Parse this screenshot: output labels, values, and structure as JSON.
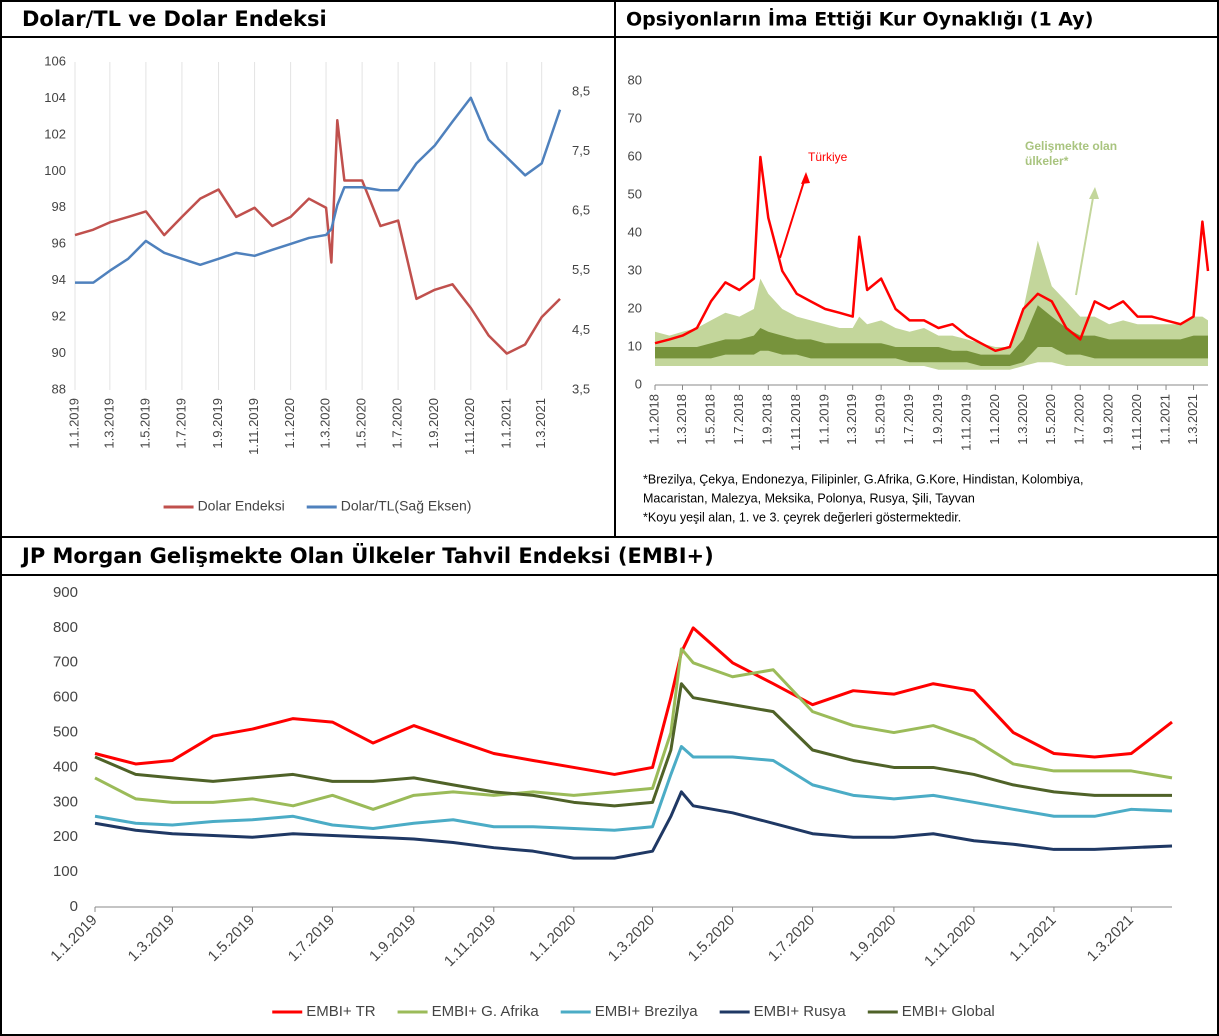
{
  "chart_data": [
    {
      "type": "line",
      "title": "Dolar/TL ve Dolar Endeksi",
      "x": [
        "1.1.2019",
        "1.2.2019",
        "1.3.2019",
        "1.4.2019",
        "1.5.2019",
        "1.6.2019",
        "1.7.2019",
        "1.8.2019",
        "1.9.2019",
        "1.10.2019",
        "1.11.2019",
        "1.12.2019",
        "1.1.2020",
        "1.2.2020",
        "1.3.2020",
        "10.3.2020",
        "20.3.2020",
        "1.4.2020",
        "1.5.2020",
        "1.6.2020",
        "1.7.2020",
        "1.8.2020",
        "1.9.2020",
        "1.10.2020",
        "1.11.2020",
        "1.12.2020",
        "1.1.2021",
        "1.2.2021",
        "1.3.2021",
        "1.4.2021"
      ],
      "xticks": [
        "1.1.2019",
        "1.3.2019",
        "1.5.2019",
        "1.7.2019",
        "1.9.2019",
        "1.11.2019",
        "1.1.2020",
        "1.3.2020",
        "1.5.2020",
        "1.7.2020",
        "1.9.2020",
        "1.11.2020",
        "1.1.2021",
        "1.3.2021"
      ],
      "ylim": [
        88,
        106
      ],
      "yticks": [
        88,
        90,
        92,
        94,
        96,
        98,
        100,
        102,
        104,
        106
      ],
      "y2lim": [
        3.5,
        9
      ],
      "y2ticks": [
        {
          "value": 3.5,
          "label": "3,5"
        },
        {
          "value": 4.5,
          "label": "4,5"
        },
        {
          "value": 5.5,
          "label": "5,5"
        },
        {
          "value": 6.5,
          "label": "6,5"
        },
        {
          "value": 7.5,
          "label": "7,5"
        },
        {
          "value": 8.5,
          "label": "8,5"
        }
      ],
      "grid": "x",
      "legend": "bottom",
      "series": [
        {
          "name": "Dolar Endeksi",
          "color": "#c0504d",
          "values": [
            96.5,
            96.8,
            97.2,
            97.5,
            97.8,
            96.5,
            97.5,
            98.5,
            99.0,
            97.5,
            98.0,
            97.0,
            97.5,
            98.5,
            98.0,
            95.0,
            102.8,
            99.5,
            99.5,
            97.0,
            97.3,
            93.0,
            93.5,
            93.8,
            92.5,
            91.0,
            90.0,
            90.5,
            92.0,
            93.0
          ]
        },
        {
          "name": "Dolar/TL(Sağ Eksen)",
          "color": "#4f81bd",
          "axis": "y2",
          "values": [
            5.3,
            5.3,
            5.5,
            5.7,
            6.0,
            5.8,
            5.7,
            5.6,
            5.7,
            5.8,
            5.75,
            5.85,
            5.95,
            6.05,
            6.1,
            6.2,
            6.6,
            6.9,
            6.9,
            6.85,
            6.85,
            7.3,
            7.6,
            8.0,
            8.4,
            7.7,
            7.4,
            7.1,
            7.3,
            8.2
          ]
        }
      ]
    },
    {
      "type": "line",
      "title": "Opsiyonların İma Ettiği Kur Oynaklığı (1 Ay)",
      "x": [
        "1.1.2018",
        "1.2.2018",
        "1.3.2018",
        "1.4.2018",
        "1.5.2018",
        "1.6.2018",
        "1.7.2018",
        "1.8.2018",
        "15.8.2018",
        "1.9.2018",
        "1.10.2018",
        "1.11.2018",
        "1.12.2018",
        "1.1.2019",
        "1.2.2019",
        "1.3.2019",
        "15.3.2019",
        "1.4.2019",
        "1.5.2019",
        "1.6.2019",
        "1.7.2019",
        "1.8.2019",
        "1.9.2019",
        "1.10.2019",
        "1.11.2019",
        "1.12.2019",
        "1.1.2020",
        "1.2.2020",
        "1.3.2020",
        "1.4.2020",
        "1.5.2020",
        "1.6.2020",
        "1.7.2020",
        "1.8.2020",
        "1.9.2020",
        "1.10.2020",
        "1.11.2020",
        "1.12.2020",
        "1.1.2021",
        "1.2.2021",
        "1.3.2021",
        "20.3.2021",
        "1.4.2021"
      ],
      "xticks": [
        "1.1.2018",
        "1.3.2018",
        "1.5.2018",
        "1.7.2018",
        "1.9.2018",
        "1.11.2018",
        "1.1.2019",
        "1.3.2019",
        "1.5.2019",
        "1.7.2019",
        "1.9.2019",
        "1.11.2019",
        "1.1.2020",
        "1.3.2020",
        "1.5.2020",
        "1.7.2020",
        "1.9.2020",
        "1.11.2020",
        "1.1.2021",
        "1.3.2021"
      ],
      "ylim": [
        0,
        80
      ],
      "yticks": [
        0,
        10,
        20,
        30,
        40,
        50,
        60,
        70,
        80
      ],
      "band_outer": {
        "color": "#c3d69b",
        "low": [
          5,
          5,
          5,
          5,
          5,
          5,
          5,
          5,
          5,
          5,
          5,
          5,
          5,
          5,
          5,
          5,
          5,
          5,
          5,
          5,
          5,
          5,
          4,
          4,
          4,
          4,
          4,
          4,
          5,
          6,
          6,
          5,
          5,
          5,
          5,
          5,
          5,
          5,
          5,
          5,
          5,
          5,
          5
        ],
        "high": [
          14,
          13,
          14,
          15,
          17,
          19,
          18,
          20,
          28,
          24,
          20,
          18,
          17,
          16,
          15,
          15,
          18,
          16,
          17,
          15,
          14,
          15,
          13,
          13,
          12,
          11,
          10,
          10,
          20,
          38,
          26,
          22,
          18,
          18,
          16,
          17,
          16,
          16,
          16,
          16,
          18,
          18,
          17
        ]
      },
      "band_inner": {
        "color": "#77933c",
        "low": [
          7,
          7,
          7,
          7,
          7,
          8,
          8,
          8,
          9,
          9,
          8,
          8,
          7,
          7,
          7,
          7,
          7,
          7,
          7,
          7,
          6,
          6,
          6,
          6,
          6,
          5,
          5,
          5,
          6,
          10,
          10,
          8,
          8,
          7,
          7,
          7,
          7,
          7,
          7,
          7,
          7,
          7,
          7
        ],
        "high": [
          10,
          10,
          10,
          10,
          11,
          12,
          12,
          13,
          15,
          14,
          13,
          12,
          12,
          11,
          11,
          11,
          11,
          11,
          11,
          10,
          10,
          10,
          10,
          9,
          9,
          8,
          8,
          8,
          12,
          21,
          18,
          15,
          13,
          13,
          12,
          12,
          12,
          12,
          12,
          12,
          13,
          13,
          13
        ]
      },
      "series": [
        {
          "name": "Türkiye",
          "color": "#ff0000",
          "values": [
            11,
            12,
            13,
            15,
            22,
            27,
            25,
            28,
            60,
            44,
            30,
            24,
            22,
            20,
            19,
            18,
            39,
            25,
            28,
            20,
            17,
            17,
            15,
            16,
            13,
            11,
            9,
            10,
            20,
            24,
            22,
            15,
            12,
            22,
            20,
            22,
            18,
            18,
            17,
            16,
            18,
            43,
            30
          ]
        }
      ],
      "annotations": [
        {
          "lines": [
            "Türkiye"
          ],
          "color": "#ff0000"
        },
        {
          "lines": [
            "Gelişmekte olan",
            "ülkeler*"
          ],
          "color": "#a9c47f"
        }
      ],
      "notes": [
        "*Brezilya, Çekya, Endonezya, Filipinler, G.Afrika, G.Kore, Hindistan, Kolombiya,",
        "Macaristan, Malezya, Meksika, Polonya, Rusya, Şili, Tayvan",
        "*Koyu yeşil alan, 1. ve 3. çeyrek değerleri göstermektedir."
      ]
    },
    {
      "type": "line",
      "title": "JP Morgan Gelişmekte Olan Ülkeler Tahvil Endeksi (EMBI+)",
      "x": [
        "1.1.2019",
        "1.2.2019",
        "1.3.2019",
        "1.4.2019",
        "1.5.2019",
        "1.6.2019",
        "1.7.2019",
        "1.8.2019",
        "1.9.2019",
        "1.10.2019",
        "1.11.2019",
        "1.12.2019",
        "1.1.2020",
        "1.2.2020",
        "1.3.2020",
        "15.3.2020",
        "23.3.2020",
        "1.4.2020",
        "1.5.2020",
        "1.6.2020",
        "1.7.2020",
        "1.8.2020",
        "1.9.2020",
        "1.10.2020",
        "1.11.2020",
        "1.12.2020",
        "1.1.2021",
        "1.2.2021",
        "1.3.2021",
        "1.4.2021"
      ],
      "xticks": [
        "1.1.2019",
        "1.3.2019",
        "1.5.2019",
        "1.7.2019",
        "1.9.2019",
        "1.11.2019",
        "1.1.2020",
        "1.3.2020",
        "1.5.2020",
        "1.7.2020",
        "1.9.2020",
        "1.11.2020",
        "1.1.2021",
        "1.3.2021"
      ],
      "ylim": [
        0,
        900
      ],
      "yticks": [
        0,
        100,
        200,
        300,
        400,
        500,
        600,
        700,
        800,
        900
      ],
      "legend": "bottom",
      "series": [
        {
          "name": "EMBI+ TR",
          "color": "#ff0000",
          "values": [
            440,
            410,
            420,
            490,
            510,
            540,
            530,
            470,
            520,
            480,
            440,
            420,
            400,
            380,
            400,
            600,
            730,
            800,
            700,
            640,
            580,
            620,
            610,
            640,
            620,
            500,
            440,
            430,
            440,
            530
          ]
        },
        {
          "name": "EMBI+ G. Afrika",
          "color": "#9bbb59",
          "values": [
            370,
            310,
            300,
            300,
            310,
            290,
            320,
            280,
            320,
            330,
            320,
            330,
            320,
            330,
            340,
            500,
            740,
            700,
            660,
            680,
            560,
            520,
            500,
            520,
            480,
            410,
            390,
            390,
            390,
            370
          ]
        },
        {
          "name": "EMBI+ Brezilya",
          "color": "#4bacc6",
          "values": [
            260,
            240,
            235,
            245,
            250,
            260,
            235,
            225,
            240,
            250,
            230,
            230,
            225,
            220,
            230,
            380,
            460,
            430,
            430,
            420,
            350,
            320,
            310,
            320,
            300,
            280,
            260,
            260,
            280,
            275
          ]
        },
        {
          "name": "EMBI+ Rusya",
          "color": "#1f3864",
          "values": [
            240,
            220,
            210,
            205,
            200,
            210,
            205,
            200,
            195,
            185,
            170,
            160,
            140,
            140,
            160,
            260,
            330,
            290,
            270,
            240,
            210,
            200,
            200,
            210,
            190,
            180,
            165,
            165,
            170,
            175
          ]
        },
        {
          "name": "EMBI+ Global",
          "color": "#4f6228",
          "values": [
            430,
            380,
            370,
            360,
            370,
            380,
            360,
            360,
            370,
            350,
            330,
            320,
            300,
            290,
            300,
            450,
            640,
            600,
            580,
            560,
            450,
            420,
            400,
            400,
            380,
            350,
            330,
            320,
            320,
            320
          ]
        }
      ]
    }
  ]
}
